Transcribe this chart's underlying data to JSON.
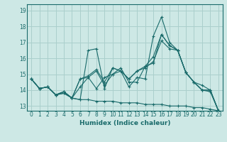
{
  "xlabel": "Humidex (Indice chaleur)",
  "background_color": "#cde8e5",
  "grid_color": "#aacfcc",
  "line_color": "#1a6b6b",
  "xlim": [
    -0.5,
    23.5
  ],
  "ylim": [
    12.7,
    19.4
  ],
  "yticks": [
    13,
    14,
    15,
    16,
    17,
    18,
    19
  ],
  "xticks": [
    0,
    1,
    2,
    3,
    4,
    5,
    6,
    7,
    8,
    9,
    10,
    11,
    12,
    13,
    14,
    15,
    16,
    17,
    18,
    19,
    20,
    21,
    22,
    23
  ],
  "series": [
    {
      "x": [
        0,
        1,
        2,
        3,
        4,
        5,
        6,
        7,
        8,
        9,
        10,
        11,
        12,
        13,
        14,
        15,
        16,
        17,
        18,
        19,
        20,
        21,
        22,
        23
      ],
      "y": [
        14.7,
        14.1,
        14.2,
        13.7,
        13.8,
        13.5,
        13.4,
        16.5,
        16.6,
        14.1,
        15.4,
        15.2,
        14.2,
        14.8,
        14.7,
        17.4,
        18.6,
        17.0,
        16.5,
        15.1,
        14.5,
        14.0,
        13.9,
        12.7
      ]
    },
    {
      "x": [
        0,
        1,
        2,
        3,
        4,
        5,
        6,
        7,
        8,
        9,
        10,
        11,
        12,
        13,
        14,
        15,
        16,
        17,
        18,
        19,
        20,
        21,
        22,
        23
      ],
      "y": [
        14.7,
        14.1,
        14.2,
        13.7,
        13.9,
        13.5,
        14.7,
        14.9,
        15.3,
        14.5,
        15.4,
        15.2,
        14.7,
        15.2,
        15.5,
        16.1,
        17.5,
        16.8,
        16.5,
        15.1,
        14.5,
        14.3,
        14.0,
        12.7
      ]
    },
    {
      "x": [
        0,
        1,
        2,
        3,
        4,
        5,
        6,
        7,
        8,
        9,
        10,
        11,
        12,
        13,
        14,
        15,
        16,
        17,
        18,
        19,
        20,
        21,
        22,
        23
      ],
      "y": [
        14.7,
        14.1,
        14.2,
        13.7,
        13.9,
        13.5,
        14.7,
        14.8,
        14.1,
        14.8,
        15.0,
        15.4,
        14.5,
        14.5,
        15.5,
        15.7,
        17.5,
        16.8,
        16.5,
        15.1,
        14.5,
        14.0,
        14.0,
        12.7
      ]
    },
    {
      "x": [
        0,
        1,
        2,
        3,
        4,
        5,
        6,
        7,
        8,
        9,
        10,
        11,
        12,
        13,
        14,
        15,
        16,
        17,
        18,
        19,
        20,
        21,
        22,
        23
      ],
      "y": [
        14.7,
        14.1,
        14.2,
        13.7,
        13.9,
        13.5,
        14.2,
        14.8,
        15.2,
        14.3,
        15.0,
        15.2,
        14.7,
        15.2,
        15.4,
        15.8,
        17.1,
        16.6,
        16.5,
        15.1,
        14.5,
        14.0,
        14.0,
        12.7
      ]
    },
    {
      "x": [
        0,
        1,
        2,
        3,
        4,
        5,
        6,
        7,
        8,
        9,
        10,
        11,
        12,
        13,
        14,
        15,
        16,
        17,
        18,
        19,
        20,
        21,
        22,
        23
      ],
      "y": [
        14.7,
        14.1,
        14.2,
        13.7,
        13.8,
        13.5,
        13.4,
        13.4,
        13.3,
        13.3,
        13.3,
        13.2,
        13.2,
        13.2,
        13.1,
        13.1,
        13.1,
        13.0,
        13.0,
        13.0,
        12.9,
        12.9,
        12.8,
        12.7
      ]
    }
  ]
}
